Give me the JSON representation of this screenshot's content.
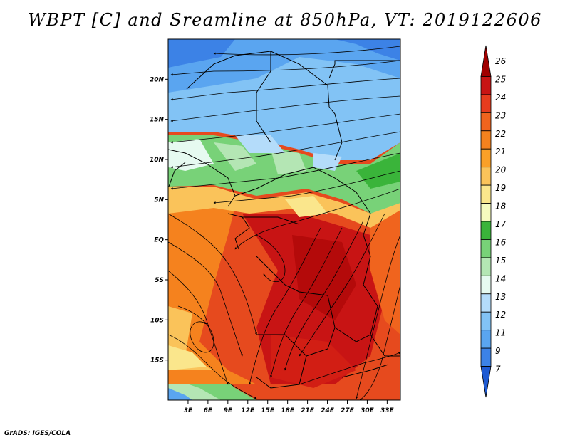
{
  "title": "WBPT [C] and Sreamline at 850hPa, VT: 2019122606",
  "credit": "GrADS: IGES/COLA",
  "map": {
    "lon_range": [
      0,
      35
    ],
    "lat_range": [
      -20,
      25
    ],
    "lat_ticks": [
      {
        "value": 20,
        "label": "20N"
      },
      {
        "value": 15,
        "label": "15N"
      },
      {
        "value": 10,
        "label": "10N"
      },
      {
        "value": 5,
        "label": "5N"
      },
      {
        "value": 0,
        "label": "EQ"
      },
      {
        "value": -5,
        "label": "5S"
      },
      {
        "value": -10,
        "label": "10S"
      },
      {
        "value": -15,
        "label": "15S"
      }
    ],
    "lon_ticks": [
      {
        "value": 3,
        "label": "3E"
      },
      {
        "value": 6,
        "label": "6E"
      },
      {
        "value": 9,
        "label": "9E"
      },
      {
        "value": 12,
        "label": "12E"
      },
      {
        "value": 15,
        "label": "15E"
      },
      {
        "value": 18,
        "label": "18E"
      },
      {
        "value": 21,
        "label": "21E"
      },
      {
        "value": 24,
        "label": "24E"
      },
      {
        "value": 27,
        "label": "27E"
      },
      {
        "value": 30,
        "label": "30E"
      },
      {
        "value": 33,
        "label": "33E"
      }
    ]
  },
  "colorbar": {
    "levels": [
      "26",
      "25",
      "24",
      "23",
      "22",
      "21",
      "20",
      "19",
      "18",
      "17",
      "16",
      "15",
      "14",
      "13",
      "12",
      "11",
      "9",
      "7"
    ],
    "colors": [
      "#a00000",
      "#c81414",
      "#e63c1e",
      "#f0641e",
      "#f5821e",
      "#faa028",
      "#fac35a",
      "#fae68c",
      "#f5fabe",
      "#3ab43a",
      "#78d278",
      "#b4e6b4",
      "#e6faf0",
      "#b4dcfa",
      "#82c3f5",
      "#5aa5f0",
      "#3c82e6",
      "#1e5ad2"
    ]
  }
}
